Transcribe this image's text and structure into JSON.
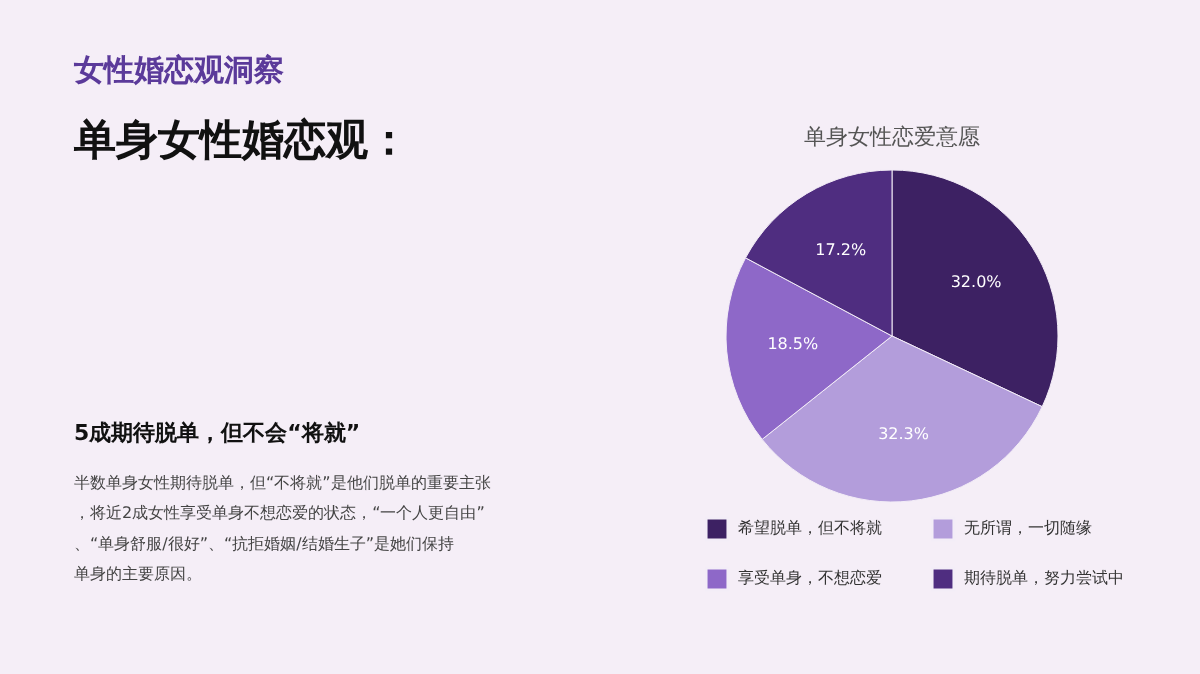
{
  "chart_data": {
    "type": "pie",
    "title": "单身女性恋爱意愿",
    "categories": [
      "希望脱单，但不将就",
      "无所谓，一切随缘",
      "享受单身，不想恋爱",
      "期待脱单，努力尝试中"
    ],
    "values": [
      32.0,
      32.3,
      18.5,
      17.2
    ],
    "colors": [
      "#3d2163",
      "#b39ddb",
      "#8e68c8",
      "#4f2d80"
    ],
    "value_labels": [
      "32.0%",
      "32.3%",
      "18.5%",
      "17.2%"
    ],
    "legend": "bottom",
    "annotations": [
      "女性婚恋观洞察",
      "单身女性婚恋观：",
      "5成期待脱单，但不会“将就”",
      "半数单身女性期待脱单，但“不将就”是他们脱单的重要主张，将近2成女性享受单身不想恋爱的状态，“一个人更自由”、“单身舒服/很好”、“抗拒婚姻/结婚生子”是她们保持单身的主要原因。"
    ]
  }
}
